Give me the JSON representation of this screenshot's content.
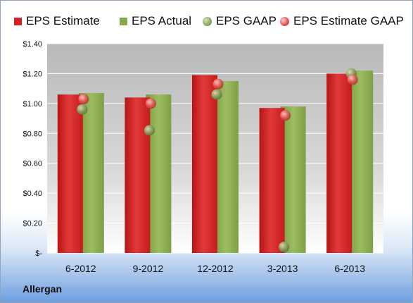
{
  "chart_data": {
    "type": "bar",
    "categories": [
      "6-2012",
      "9-2012",
      "12-2012",
      "3-2013",
      "6-2013"
    ],
    "series": [
      {
        "name": "EPS Estimate",
        "kind": "bar",
        "color": "#d42020",
        "values": [
          1.06,
          1.04,
          1.19,
          0.97,
          1.2
        ]
      },
      {
        "name": "EPS Actual",
        "kind": "bar",
        "color": "#86a84a",
        "values": [
          1.07,
          1.06,
          1.15,
          0.98,
          1.22
        ]
      },
      {
        "name": "EPS GAAP",
        "kind": "point",
        "color": "#7e9b56",
        "values": [
          0.96,
          0.82,
          1.06,
          0.04,
          1.2
        ]
      },
      {
        "name": "EPS Estimate GAAP",
        "kind": "point",
        "color": "#e0504e",
        "values": [
          1.03,
          1.0,
          1.13,
          0.92,
          1.16
        ]
      }
    ],
    "ylim": [
      0,
      1.4
    ],
    "yticks": [
      0,
      0.2,
      0.4,
      0.6,
      0.8,
      1.0,
      1.2,
      1.4
    ],
    "ytick_labels": [
      "$-",
      "$0.20",
      "$0.40",
      "$0.60",
      "$0.80",
      "$1.00",
      "$1.20",
      "$1.40"
    ],
    "grid": true,
    "legend_position": "top",
    "company": "Allergan"
  }
}
